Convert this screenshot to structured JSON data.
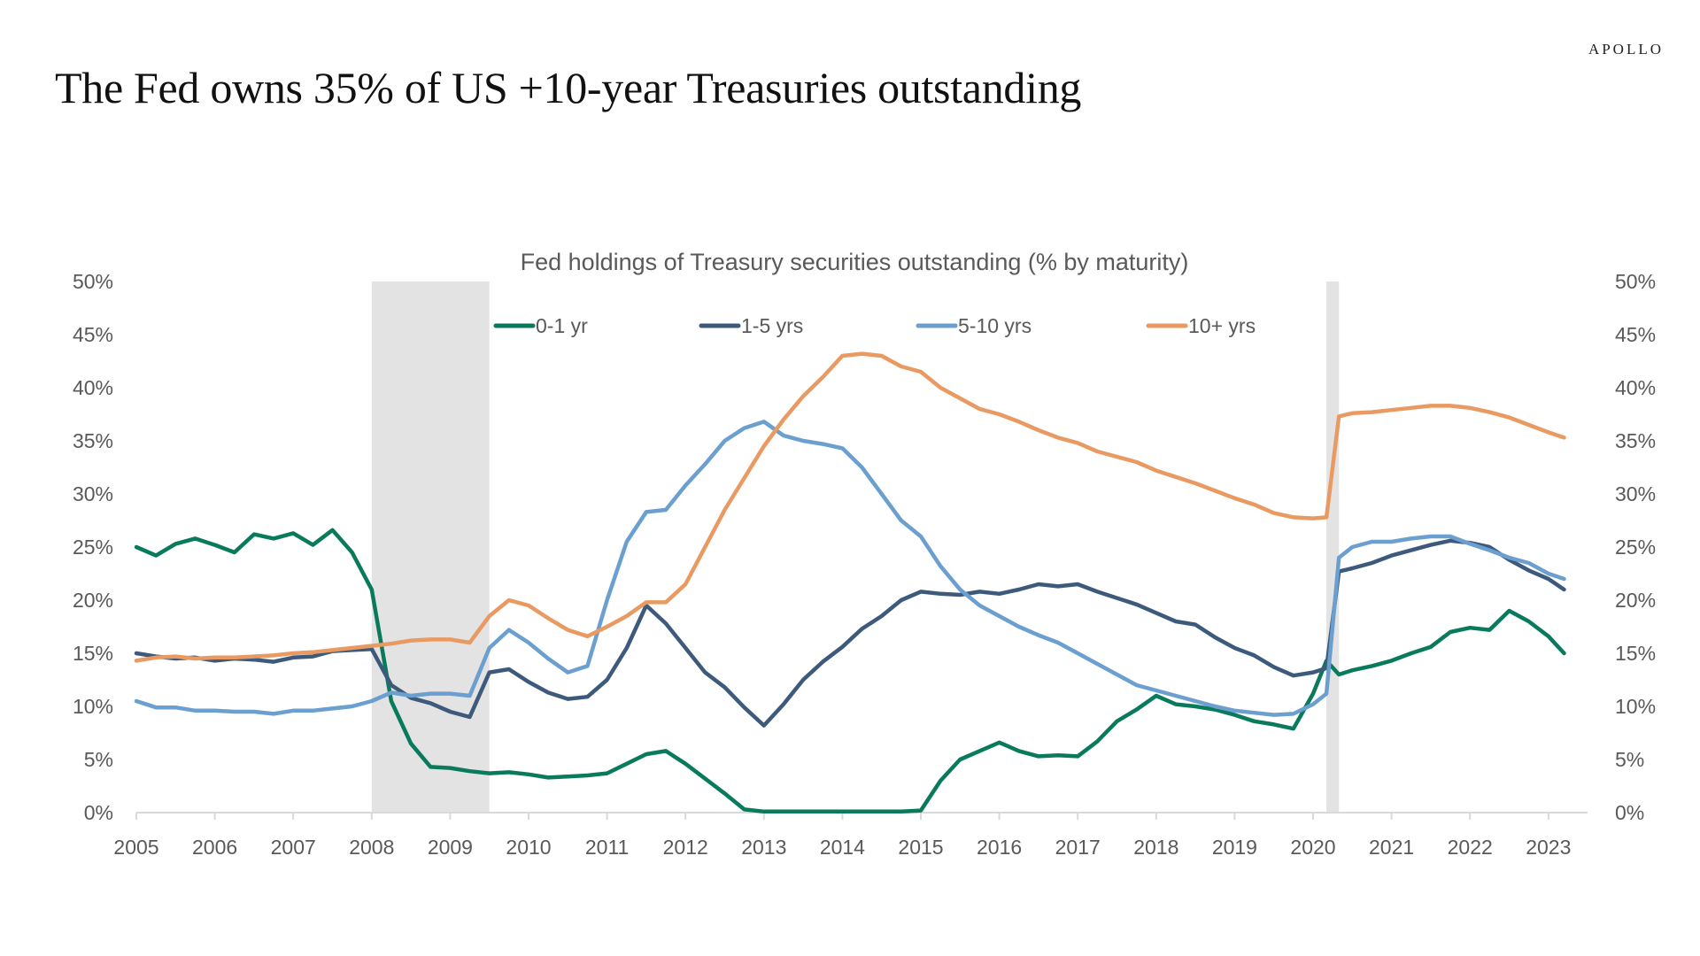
{
  "brand": "APOLLO",
  "page_title": "The Fed owns 35% of US +10-year Treasuries outstanding",
  "chart_data": {
    "type": "line",
    "title": "Fed holdings of Treasury securities outstanding (% by maturity)",
    "xlabel": "",
    "ylabel": "",
    "ylim": [
      0,
      50
    ],
    "xlim": [
      2005,
      2023.5
    ],
    "y_ticks": [
      0,
      5,
      10,
      15,
      20,
      25,
      30,
      35,
      40,
      45,
      50
    ],
    "y_tick_labels": [
      "0%",
      "5%",
      "10%",
      "15%",
      "20%",
      "25%",
      "30%",
      "35%",
      "40%",
      "45%",
      "50%"
    ],
    "x_ticks": [
      2005,
      2006,
      2007,
      2008,
      2009,
      2010,
      2011,
      2012,
      2013,
      2014,
      2015,
      2016,
      2017,
      2018,
      2019,
      2020,
      2021,
      2022,
      2023
    ],
    "x_tick_labels": [
      "2005",
      "2006",
      "2007",
      "2008",
      "2009",
      "2010",
      "2011",
      "2012",
      "2013",
      "2014",
      "2015",
      "2016",
      "2017",
      "2018",
      "2019",
      "2020",
      "2021",
      "2022",
      "2023"
    ],
    "secondary_y_axis": true,
    "grid": false,
    "legend_position": "top",
    "recession_shading": [
      {
        "start": 2008.0,
        "end": 2009.5
      },
      {
        "start": 2020.17,
        "end": 2020.33
      }
    ],
    "shading_color": "#e3e3e3",
    "x": [
      2005.0,
      2005.25,
      2005.5,
      2005.75,
      2006.0,
      2006.25,
      2006.5,
      2006.75,
      2007.0,
      2007.25,
      2007.5,
      2007.75,
      2008.0,
      2008.25,
      2008.5,
      2008.75,
      2009.0,
      2009.25,
      2009.5,
      2009.75,
      2010.0,
      2010.25,
      2010.5,
      2010.75,
      2011.0,
      2011.25,
      2011.5,
      2011.75,
      2012.0,
      2012.25,
      2012.5,
      2012.75,
      2013.0,
      2013.25,
      2013.5,
      2013.75,
      2014.0,
      2014.25,
      2014.5,
      2014.75,
      2015.0,
      2015.25,
      2015.5,
      2015.75,
      2016.0,
      2016.25,
      2016.5,
      2016.75,
      2017.0,
      2017.25,
      2017.5,
      2017.75,
      2018.0,
      2018.25,
      2018.5,
      2018.75,
      2019.0,
      2019.25,
      2019.5,
      2019.75,
      2020.0,
      2020.17,
      2020.33,
      2020.5,
      2020.75,
      2021.0,
      2021.25,
      2021.5,
      2021.75,
      2022.0,
      2022.25,
      2022.5,
      2022.75,
      2023.0,
      2023.2
    ],
    "series": [
      {
        "name": "0-1 yr",
        "color": "#0a7a5c",
        "values": [
          25.0,
          24.2,
          25.3,
          25.8,
          25.2,
          24.5,
          26.2,
          25.8,
          26.3,
          25.2,
          26.6,
          24.5,
          21.0,
          10.5,
          6.5,
          4.3,
          4.2,
          3.9,
          3.7,
          3.8,
          3.6,
          3.3,
          3.4,
          3.5,
          3.7,
          4.6,
          5.5,
          5.8,
          4.6,
          3.2,
          1.8,
          0.3,
          0.1,
          0.1,
          0.1,
          0.1,
          0.1,
          0.1,
          0.1,
          0.1,
          0.2,
          3.0,
          5.0,
          5.8,
          6.6,
          5.8,
          5.3,
          5.4,
          5.3,
          6.7,
          8.6,
          9.7,
          11.0,
          10.2,
          10.0,
          9.7,
          9.2,
          8.6,
          8.3,
          7.9,
          11.2,
          14.3,
          13.0,
          13.4,
          13.8,
          14.3,
          15.0,
          15.6,
          17.0,
          17.4,
          17.2,
          19.0,
          18.0,
          16.6,
          15.0
        ]
      },
      {
        "name": "1-5 yrs",
        "color": "#3d5a7d",
        "values": [
          15.0,
          14.7,
          14.5,
          14.6,
          14.3,
          14.5,
          14.4,
          14.2,
          14.6,
          14.7,
          15.2,
          15.3,
          15.4,
          12.0,
          10.8,
          10.3,
          9.5,
          9.0,
          13.2,
          13.5,
          12.3,
          11.3,
          10.7,
          10.9,
          12.5,
          15.5,
          19.5,
          17.8,
          15.5,
          13.2,
          11.8,
          9.9,
          8.2,
          10.2,
          12.5,
          14.2,
          15.6,
          17.3,
          18.5,
          20.0,
          20.8,
          20.6,
          20.5,
          20.8,
          20.6,
          21.0,
          21.5,
          21.3,
          21.5,
          20.8,
          20.2,
          19.6,
          18.8,
          18.0,
          17.7,
          16.5,
          15.5,
          14.8,
          13.7,
          12.9,
          13.2,
          13.6,
          22.7,
          23.0,
          23.5,
          24.2,
          24.7,
          25.2,
          25.6,
          25.4,
          25.0,
          23.8,
          22.8,
          22.0,
          21.0
        ]
      },
      {
        "name": "5-10 yrs",
        "color": "#6b9fcf",
        "values": [
          10.5,
          9.9,
          9.9,
          9.6,
          9.6,
          9.5,
          9.5,
          9.3,
          9.6,
          9.6,
          9.8,
          10.0,
          10.5,
          11.3,
          11.0,
          11.2,
          11.2,
          11.0,
          15.5,
          17.2,
          16.0,
          14.5,
          13.2,
          13.8,
          20.0,
          25.5,
          28.3,
          28.5,
          30.8,
          32.8,
          35.0,
          36.2,
          36.8,
          35.5,
          35.0,
          34.7,
          34.3,
          32.5,
          30.0,
          27.5,
          26.0,
          23.2,
          21.0,
          19.5,
          18.5,
          17.5,
          16.7,
          16.0,
          15.0,
          14.0,
          13.0,
          12.0,
          11.5,
          11.0,
          10.5,
          10.0,
          9.6,
          9.4,
          9.2,
          9.3,
          10.2,
          11.2,
          24.0,
          25.0,
          25.5,
          25.5,
          25.8,
          26.0,
          26.0,
          25.3,
          24.7,
          24.0,
          23.5,
          22.5,
          22.0
        ]
      },
      {
        "name": "10+ yrs",
        "color": "#e99a62",
        "values": [
          14.3,
          14.6,
          14.7,
          14.5,
          14.6,
          14.6,
          14.7,
          14.8,
          15.0,
          15.1,
          15.3,
          15.5,
          15.7,
          15.9,
          16.2,
          16.3,
          16.3,
          16.0,
          18.5,
          20.0,
          19.5,
          18.3,
          17.2,
          16.6,
          17.5,
          18.5,
          19.8,
          19.8,
          21.5,
          25.0,
          28.5,
          31.5,
          34.5,
          37.0,
          39.2,
          41.0,
          43.0,
          43.2,
          43.0,
          42.0,
          41.5,
          40.0,
          39.0,
          38.0,
          37.5,
          36.8,
          36.0,
          35.3,
          34.8,
          34.0,
          33.5,
          33.0,
          32.2,
          31.6,
          31.0,
          30.3,
          29.6,
          29.0,
          28.2,
          27.8,
          27.7,
          27.8,
          37.3,
          37.6,
          37.7,
          37.9,
          38.1,
          38.3,
          38.3,
          38.1,
          37.7,
          37.2,
          36.5,
          35.8,
          35.3
        ]
      }
    ],
    "legend": [
      "0-1 yr",
      "1-5 yrs",
      "5-10 yrs",
      "10+ yrs"
    ]
  }
}
